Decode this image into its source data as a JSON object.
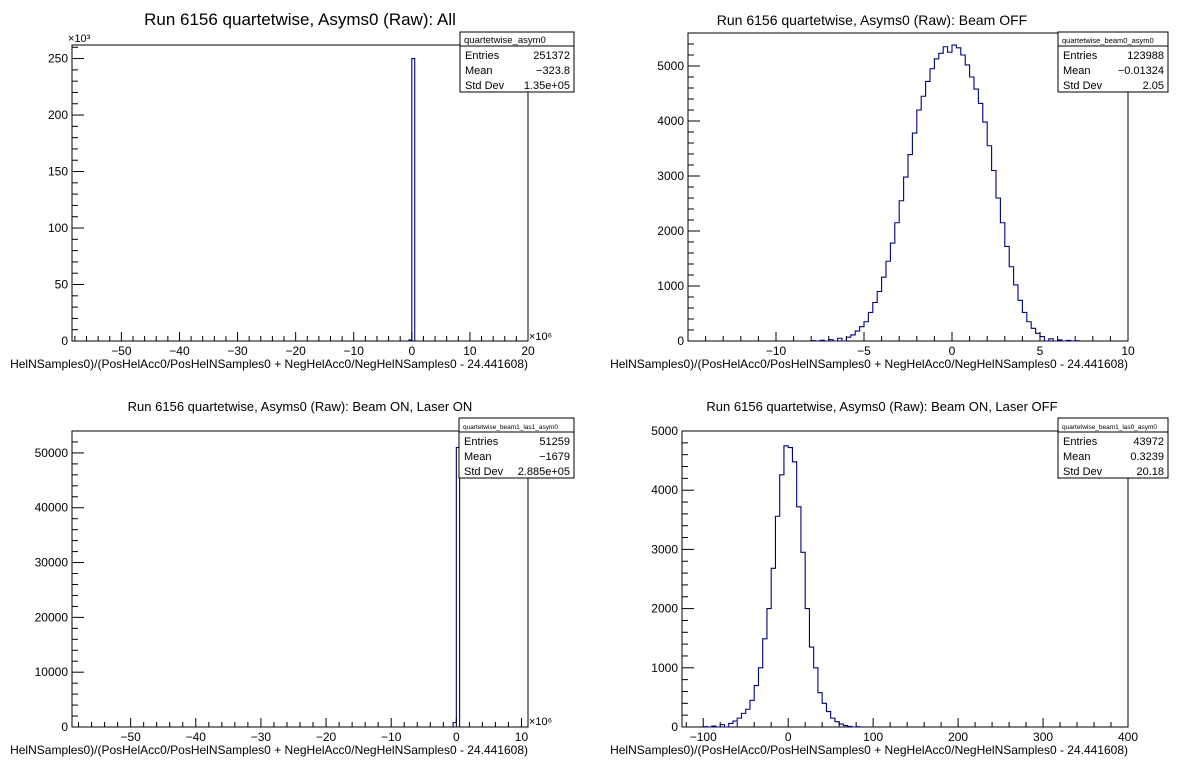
{
  "chart_data": [
    {
      "type": "bar",
      "title": "Run 6156 quartetwise, Asyms0 (Raw): All",
      "xlabel": "HelNSamples0)/(PosHelAcc0/PosHelNSamples0 + NegHelAcc0/NegHelNSamples0 - 24.441608)",
      "ylabel": "",
      "x_exponent": "×10⁶",
      "y_exponent": "×10³",
      "xlim": [
        -58.5,
        20
      ],
      "ylim": [
        0,
        262
      ],
      "x_ticks": [
        -50,
        -40,
        -30,
        -20,
        -10,
        0,
        10,
        20
      ],
      "x_tick_labels": [
        "−50",
        "−40",
        "−30",
        "−20",
        "−10",
        "0",
        "10",
        "20"
      ],
      "y_ticks": [
        0,
        50,
        100,
        150,
        200,
        250
      ],
      "y_tick_labels": [
        "0",
        "50",
        "100",
        "150",
        "200",
        "250"
      ],
      "x": [
        -0.5,
        0.0
      ],
      "values": [
        1,
        250
      ],
      "bin_width": 0.5,
      "stats": {
        "name": "quartetwise_asym0",
        "rows": [
          {
            "label": "Entries",
            "value": "251372"
          },
          {
            "label": "Mean",
            "value": "−323.8"
          },
          {
            "label": "Std Dev",
            "value": "1.35e+05"
          }
        ]
      }
    },
    {
      "type": "bar",
      "title": "Run 6156 quartetwise, Asyms0 (Raw): Beam OFF",
      "xlabel": "HelNSamples0)/(PosHelAcc0/PosHelNSamples0 + NegHelAcc0/NegHelNSamples0 - 24.441608)",
      "ylabel": "",
      "x_exponent": "",
      "y_exponent": "",
      "xlim": [
        -15,
        10
      ],
      "ylim": [
        0,
        5600
      ],
      "x_ticks": [
        -10,
        -5,
        0,
        5,
        10
      ],
      "x_tick_labels": [
        "−10",
        "−5",
        "0",
        "5",
        "10"
      ],
      "y_ticks": [
        0,
        1000,
        2000,
        3000,
        4000,
        5000
      ],
      "y_tick_labels": [
        "0",
        "1000",
        "2000",
        "3000",
        "4000",
        "5000"
      ],
      "x": [
        -8,
        -7.5,
        -7,
        -6.5,
        -6,
        -5.75,
        -5.5,
        -5.25,
        -5,
        -4.75,
        -4.5,
        -4.25,
        -4,
        -3.75,
        -3.5,
        -3.25,
        -3,
        -2.75,
        -2.5,
        -2.25,
        -2,
        -1.75,
        -1.5,
        -1.25,
        -1,
        -0.75,
        -0.5,
        -0.25,
        0,
        0.25,
        0.5,
        0.75,
        1,
        1.25,
        1.5,
        1.75,
        2,
        2.25,
        2.5,
        2.75,
        3,
        3.25,
        3.5,
        3.75,
        4,
        4.25,
        4.5,
        4.75,
        5,
        5.5,
        6,
        6.5,
        7
      ],
      "values": [
        5,
        12,
        25,
        50,
        70,
        110,
        180,
        260,
        350,
        520,
        700,
        900,
        1160,
        1450,
        1780,
        2150,
        2550,
        2980,
        3390,
        3780,
        4200,
        4450,
        4720,
        4950,
        5130,
        5230,
        5350,
        5250,
        5380,
        5330,
        5200,
        5020,
        4800,
        4580,
        4320,
        3980,
        3550,
        3100,
        2600,
        2150,
        1720,
        1350,
        1020,
        740,
        520,
        350,
        230,
        140,
        80,
        40,
        20,
        10,
        4
      ],
      "bin_width": 0.25,
      "stats": {
        "name": "quartetwise_beam0_asym0",
        "rows": [
          {
            "label": "Entries",
            "value": "123988"
          },
          {
            "label": "Mean",
            "value": "−0.01324"
          },
          {
            "label": "Std Dev",
            "value": "2.05"
          }
        ]
      }
    },
    {
      "type": "bar",
      "title": "Run 6156 quartetwise, Asyms0 (Raw): Beam ON, Laser ON",
      "xlabel": "HelNSamples0)/(PosHelAcc0/PosHelNSamples0 + NegHelAcc0/NegHelNSamples0 - 24.441608)",
      "ylabel": "",
      "x_exponent": "×10⁶",
      "y_exponent": "",
      "xlim": [
        -59,
        11
      ],
      "ylim": [
        0,
        54000
      ],
      "x_ticks": [
        -50,
        -40,
        -30,
        -20,
        -10,
        0,
        10
      ],
      "x_tick_labels": [
        "−50",
        "−40",
        "−30",
        "−20",
        "−10",
        "0",
        "10"
      ],
      "y_ticks": [
        0,
        10000,
        20000,
        30000,
        40000,
        50000
      ],
      "y_tick_labels": [
        "0",
        "10000",
        "20000",
        "30000",
        "40000",
        "50000"
      ],
      "x": [
        -0.5,
        0.0
      ],
      "values": [
        800,
        51000
      ],
      "bin_width": 0.5,
      "stats": {
        "name": "quartetwise_beam1_las1_asym0",
        "rows": [
          {
            "label": "Entries",
            "value": "51259"
          },
          {
            "label": "Mean",
            "value": "−1679"
          },
          {
            "label": "Std Dev",
            "value": "2.885e+05"
          }
        ]
      }
    },
    {
      "type": "bar",
      "title": "Run 6156 quartetwise, Asyms0 (Raw): Beam ON, Laser OFF",
      "xlabel": "HelNSamples0)/(PosHelAcc0/PosHelNSamples0 + NegHelAcc0/NegHelNSamples0 - 24.441608)",
      "ylabel": "",
      "x_exponent": "",
      "y_exponent": "",
      "xlim": [
        -125,
        400
      ],
      "ylim": [
        0,
        5000
      ],
      "x_ticks": [
        -100,
        0,
        100,
        200,
        300,
        400
      ],
      "x_tick_labels": [
        "−100",
        "0",
        "100",
        "200",
        "300",
        "400"
      ],
      "y_ticks": [
        0,
        1000,
        2000,
        3000,
        4000,
        5000
      ],
      "y_tick_labels": [
        "0",
        "1000",
        "2000",
        "3000",
        "4000",
        "5000"
      ],
      "x": [
        -100,
        -90,
        -80,
        -70,
        -65,
        -60,
        -55,
        -50,
        -45,
        -40,
        -35,
        -30,
        -25,
        -20,
        -15,
        -10,
        -5,
        0,
        5,
        10,
        15,
        20,
        25,
        30,
        35,
        40,
        45,
        50,
        55,
        60,
        65,
        70,
        80
      ],
      "values": [
        5,
        15,
        40,
        60,
        100,
        150,
        230,
        300,
        450,
        700,
        1000,
        1490,
        2000,
        2680,
        3560,
        4260,
        4750,
        4720,
        4480,
        3720,
        2950,
        2000,
        1350,
        1000,
        580,
        400,
        260,
        150,
        90,
        50,
        25,
        10,
        3
      ],
      "bin_width": 5,
      "stats": {
        "name": "quartetwise_beam1_las0_asym0",
        "rows": [
          {
            "label": "Entries",
            "value": "43972"
          },
          {
            "label": "Mean",
            "value": "0.3239"
          },
          {
            "label": "Std Dev",
            "value": "20.18"
          }
        ]
      }
    }
  ]
}
